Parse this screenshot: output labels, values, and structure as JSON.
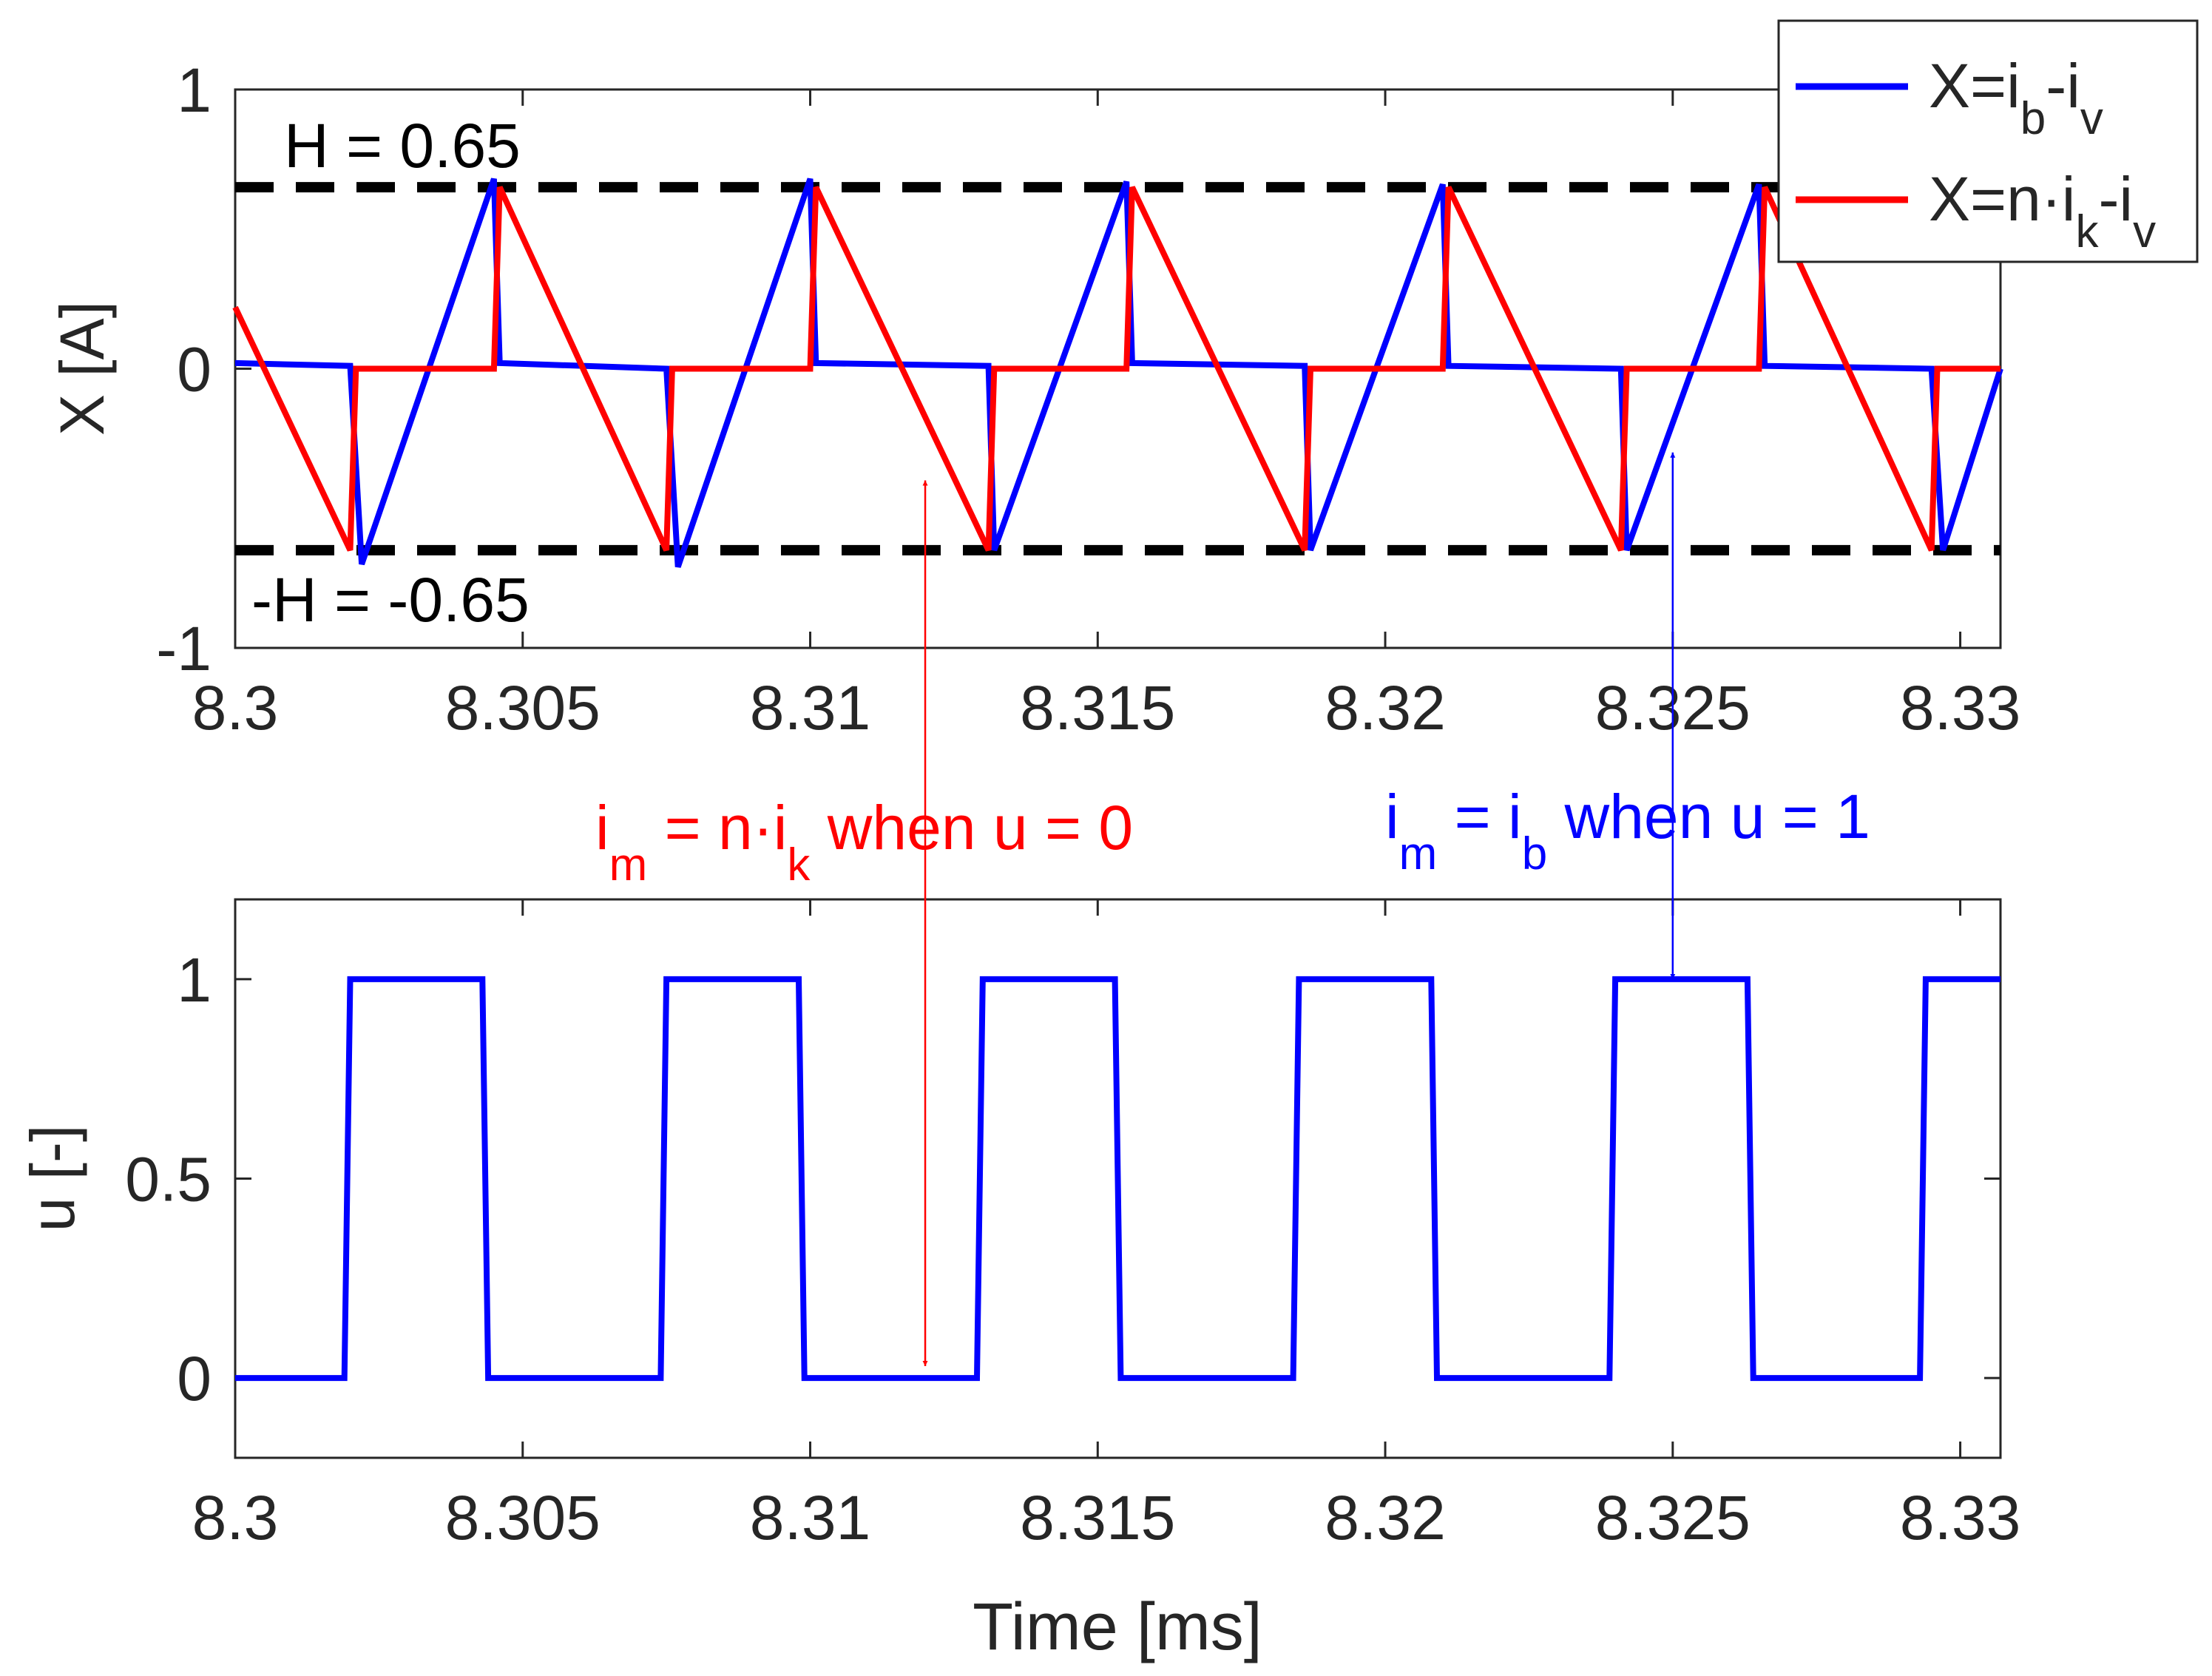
{
  "chart_data": [
    {
      "type": "line",
      "title": "",
      "xlabel": "",
      "ylabel": "X [A]",
      "xlim": [
        8.3,
        8.3307
      ],
      "ylim": [
        -1,
        1
      ],
      "grid": false,
      "xticks": [
        8.3,
        8.305,
        8.31,
        8.315,
        8.32,
        8.325,
        8.33
      ],
      "xtick_labels": [
        "8.3",
        "8.305",
        "8.31",
        "8.315",
        "8.32",
        "8.325",
        "8.33"
      ],
      "yticks": [
        -1,
        0,
        1
      ],
      "ytick_labels": [
        "-1",
        "0",
        "1"
      ],
      "legend": {
        "position": "top-right",
        "entries": [
          {
            "name": "X=ib-iv",
            "base": "X=i",
            "sub1": "b",
            "mid": "-i",
            "sub2": "v",
            "color": "#0000FF"
          },
          {
            "name": "X=n·ik-iv",
            "base": "X=n·i",
            "sub1": "k",
            "mid": "-i",
            "sub2": "v",
            "color": "#FF0000"
          }
        ]
      },
      "series": [
        {
          "name": "X=ib-iv",
          "color": "#0000FF",
          "x": [
            8.3,
            8.302,
            8.3022,
            8.3045,
            8.3046,
            8.3075,
            8.3077,
            8.31,
            8.3101,
            8.3131,
            8.3132,
            8.3155,
            8.3156,
            8.3186,
            8.3187,
            8.321,
            8.3211,
            8.3241,
            8.3242,
            8.3265,
            8.3266,
            8.3295,
            8.3297,
            8.3307
          ],
          "y": [
            0.02,
            0.01,
            -0.7,
            0.68,
            0.02,
            0.0,
            -0.71,
            0.68,
            0.02,
            0.01,
            -0.65,
            0.67,
            0.02,
            0.01,
            -0.65,
            0.66,
            0.01,
            0.0,
            -0.65,
            0.66,
            0.01,
            0.0,
            -0.65,
            0.0
          ]
        },
        {
          "name": "X=n·ik-iv",
          "color": "#FF0000",
          "x": [
            8.3,
            8.302,
            8.3021,
            8.3045,
            8.3046,
            8.3075,
            8.3076,
            8.31,
            8.3101,
            8.3131,
            8.3132,
            8.3155,
            8.3156,
            8.3186,
            8.3187,
            8.321,
            8.3211,
            8.3241,
            8.3242,
            8.3265,
            8.3266,
            8.3295,
            8.3296,
            8.3307
          ],
          "y": [
            0.22,
            -0.65,
            0.0,
            0.0,
            0.65,
            -0.65,
            0.0,
            0.0,
            0.65,
            -0.65,
            0.0,
            0.0,
            0.65,
            -0.65,
            0.0,
            0.0,
            0.65,
            -0.65,
            0.0,
            0.0,
            0.65,
            -0.65,
            0.0,
            0.0
          ]
        }
      ],
      "reference_lines": [
        {
          "y": 0.65,
          "style": "dashed",
          "color": "#000000",
          "label": "H = 0.65"
        },
        {
          "y": -0.65,
          "style": "dashed",
          "color": "#000000",
          "label": "-H = -0.65"
        }
      ]
    },
    {
      "type": "line",
      "title": "",
      "xlabel": "Time [ms]",
      "ylabel": "u [-]",
      "xlim": [
        8.3,
        8.3307
      ],
      "ylim": [
        -0.2,
        1.2
      ],
      "grid": false,
      "xticks": [
        8.3,
        8.305,
        8.31,
        8.315,
        8.32,
        8.325,
        8.33
      ],
      "xtick_labels": [
        "8.3",
        "8.305",
        "8.31",
        "8.315",
        "8.32",
        "8.325",
        "8.33"
      ],
      "yticks": [
        0,
        0.5,
        1
      ],
      "ytick_labels": [
        "0",
        "0.5",
        "1"
      ],
      "series": [
        {
          "name": "u",
          "color": "#0000FF",
          "x": [
            8.3,
            8.3019,
            8.302,
            8.3043,
            8.3044,
            8.3074,
            8.3075,
            8.3098,
            8.3099,
            8.3129,
            8.313,
            8.3153,
            8.3154,
            8.3184,
            8.3185,
            8.3208,
            8.3209,
            8.3239,
            8.324,
            8.3263,
            8.3264,
            8.3293,
            8.3294,
            8.3307
          ],
          "y": [
            0,
            0,
            1,
            1,
            0,
            0,
            1,
            1,
            0,
            0,
            1,
            1,
            0,
            0,
            1,
            1,
            0,
            0,
            1,
            1,
            0,
            0,
            1,
            1
          ]
        }
      ]
    }
  ],
  "annotations": [
    {
      "id": "red",
      "color": "#FF0000",
      "base": "i",
      "sub1": "m",
      "text1": " = n·i",
      "sub2": "k",
      "text2": " when u = 0",
      "arrow_x": 8.312
    },
    {
      "id": "blue",
      "color": "#0000FF",
      "base": "i",
      "sub1": "m",
      "text1": " = i",
      "sub2": "b",
      "text2": " when u = 1",
      "arrow_x": 8.325
    }
  ]
}
